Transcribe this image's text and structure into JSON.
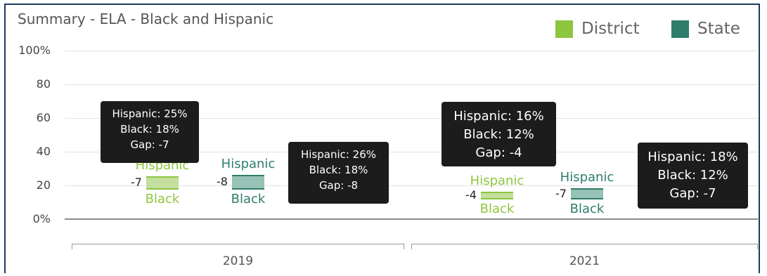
{
  "chart_data": {
    "type": "bar",
    "title": "Summary - ELA - Black and Hispanic",
    "categories": [
      "2019",
      "2021"
    ],
    "y_ticks": [
      "100%",
      "80",
      "60",
      "40",
      "20",
      "0%"
    ],
    "ylim": [
      0,
      100
    ],
    "grid": true,
    "legend_position": "top-right",
    "colors": {
      "district": "#8dc63f",
      "state": "#2e7d6b",
      "district_fill": "#c5df9f",
      "state_fill": "#97c2b6",
      "tooltip": "#1c1c1c"
    },
    "series": [
      {
        "name": "District",
        "values": [
          {
            "category": "2019",
            "hispanic": 25,
            "black": 18,
            "gap": -7,
            "gap_label": "-7",
            "hispanic_label": "Hispanic",
            "black_label": "Black",
            "tooltip": [
              "Hispanic: 25%",
              "Black: 18%",
              "Gap: -7"
            ]
          },
          {
            "category": "2021",
            "hispanic": 16,
            "black": 12,
            "gap": -4,
            "gap_label": "-4",
            "hispanic_label": "Hispanic",
            "black_label": "Black",
            "tooltip": [
              "Hispanic: 16%",
              "Black: 12%",
              "Gap: -4"
            ]
          }
        ]
      },
      {
        "name": "State",
        "values": [
          {
            "category": "2019",
            "hispanic": 26,
            "black": 18,
            "gap": -8,
            "gap_label": "-8",
            "hispanic_label": "Hispanic",
            "black_label": "Black",
            "tooltip": [
              "Hispanic: 26%",
              "Black: 18%",
              "Gap: -8"
            ]
          },
          {
            "category": "2021",
            "hispanic": 18,
            "black": 12,
            "gap": -7,
            "gap_label": "-7",
            "hispanic_label": "Hispanic",
            "black_label": "Black",
            "tooltip": [
              "Hispanic: 18%",
              "Black: 12%",
              "Gap: -7"
            ]
          }
        ]
      }
    ]
  }
}
